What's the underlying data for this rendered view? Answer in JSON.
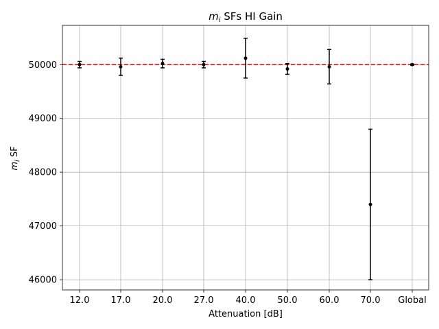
{
  "chart_data": {
    "type": "scatter",
    "title_var": "m",
    "title_sub": "i",
    "title_rest": " SFs HI Gain",
    "xlabel": "Attenuation [dB]",
    "ylabel_var": "m",
    "ylabel_sub": "i",
    "ylabel_rest": " SF",
    "categories": [
      "12.0",
      "17.0",
      "20.0",
      "27.0",
      "40.0",
      "50.0",
      "60.0",
      "70.0",
      "Global"
    ],
    "values": [
      50000,
      49960,
      50020,
      50000,
      50120,
      49920,
      49960,
      47400,
      50000
    ],
    "errors": [
      60,
      160,
      80,
      60,
      370,
      100,
      320,
      1400,
      10
    ],
    "reference_line": 50000,
    "ylim": [
      45810,
      50730
    ],
    "yticks": [
      46000,
      47000,
      48000,
      49000,
      50000
    ],
    "grid": true,
    "colors": {
      "points": "#000000",
      "reference_line": "#ff0000",
      "grid": "#b0b0b0"
    }
  }
}
